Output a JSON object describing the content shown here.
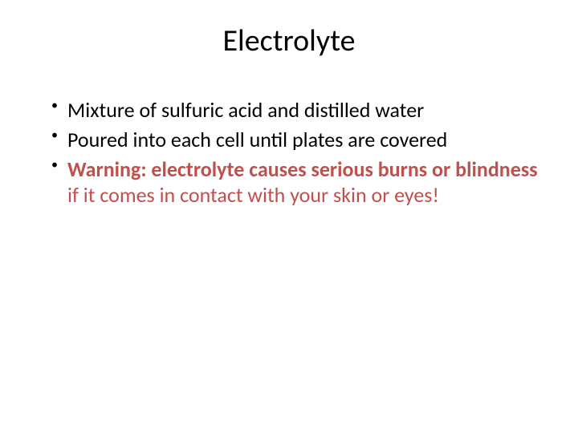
{
  "slide": {
    "title": "Electrolyte",
    "title_fontsize": 38,
    "title_color": "#000000",
    "background_color": "#ffffff",
    "bullets": [
      {
        "text": "Mixture of sulfuric acid and distilled water",
        "bold": false,
        "color": "#000000",
        "fontsize": 26
      },
      {
        "text": "Poured into each cell until plates are covered",
        "bold": false,
        "color": "#000000",
        "fontsize": 26
      },
      {
        "bold_prefix": "Warning: electrolyte causes serious burns or blindness",
        "rest": " if it comes in contact with your skin or eyes!",
        "color": "#c0504d",
        "fontsize": 26
      }
    ],
    "bullet_marker_color": "#000000",
    "line_height": 1.2
  }
}
